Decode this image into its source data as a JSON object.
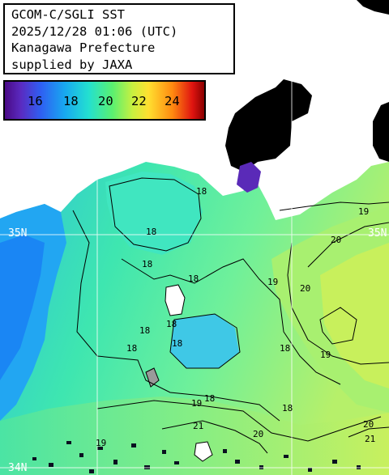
{
  "title": {
    "line1": "GCOM-C/SGLI SST",
    "line2": "2025/12/28 01:06 (UTC)",
    "line3": "Kanagawa Prefecture",
    "line4": "supplied by JAXA"
  },
  "color_scale": {
    "ticks": [
      "16",
      "18",
      "20",
      "22",
      "24"
    ],
    "colors": [
      "#4a0a86",
      "#2f5ff2",
      "#23e0d0",
      "#5af070",
      "#ffe030",
      "#ff8a10",
      "#e01410",
      "#8a0000"
    ]
  },
  "latitude_labels": [
    "35N",
    "35N",
    "34N"
  ],
  "contour_labels": [
    "18",
    "18",
    "18",
    "18",
    "18",
    "18",
    "18",
    "18",
    "18",
    "18",
    "18",
    "19",
    "19",
    "19",
    "19",
    "19",
    "20",
    "20",
    "20",
    "20",
    "21",
    "21"
  ],
  "colors": {
    "land": "#000000",
    "coast_cold": "#2f8fff",
    "sea_18": "#3ee6b0",
    "sea_19": "#5ff0a0",
    "sea_20": "#9cf078",
    "sea_21": "#c8f060"
  }
}
